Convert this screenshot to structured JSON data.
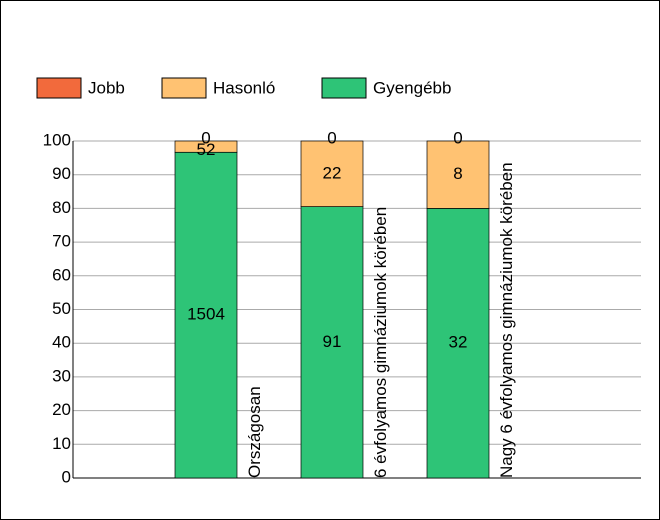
{
  "chart_data": {
    "type": "bar",
    "stacking": "percent",
    "categories": [
      "Országosan",
      "6 évfolyamos gimnáziumok körében",
      "Nagy 6 évfolyamos gimnáziumok körében"
    ],
    "series": [
      {
        "name": "Jobb",
        "color": "#f26a3c",
        "values": [
          0,
          0,
          0
        ]
      },
      {
        "name": "Hasonló",
        "color": "#ffc272",
        "values": [
          52,
          22,
          8
        ]
      },
      {
        "name": "Gyengébb",
        "color": "#2ec477",
        "values": [
          1504,
          91,
          32
        ]
      }
    ],
    "ylim": [
      0,
      100
    ],
    "yticks": [
      0,
      10,
      20,
      30,
      40,
      50,
      60,
      70,
      80,
      90,
      100
    ],
    "grid": true,
    "legend": "top"
  }
}
